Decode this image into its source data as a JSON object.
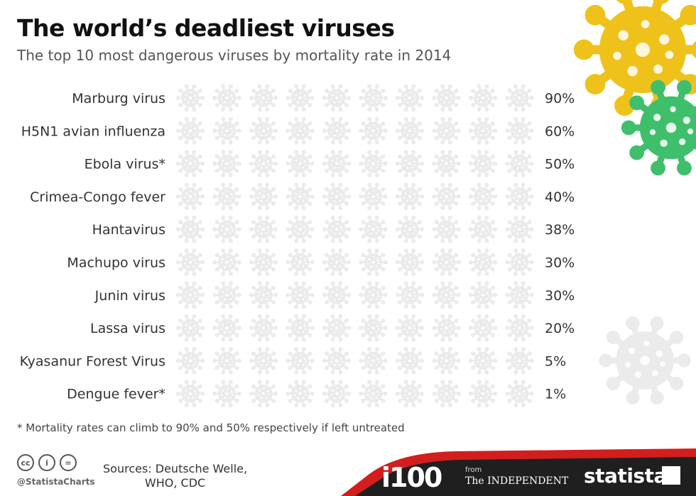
{
  "title": "The world’s deadliest viruses",
  "subtitle": "The top 10 most dangerous viruses by mortality rate in 2014",
  "footnote": "* Mortality rates can climb to 90% and 50% respectively if left untreated",
  "footer": {
    "handle": "@StatistaCharts",
    "sources_line1": "Sources: Deutsche Welle,",
    "sources_line2": "WHO, CDC",
    "i100": "i100",
    "from": "from",
    "independent": "The INDEPENDENT",
    "statista": "statista"
  },
  "colors": {
    "yellow": "#eec21a",
    "green": "#3fbf6b",
    "empty": "#ebebeb",
    "footer_dark": "#1f1f1f",
    "footer_red": "#d21e1e"
  },
  "chart_data": {
    "type": "pictogram",
    "unit_icon": "virus-icon",
    "icons_per_row": 10,
    "percent_per_icon": 10,
    "categories": [
      "Marburg virus",
      "H5N1 avian influenza",
      "Ebola virus*",
      "Crimea-Congo fever",
      "Hantavirus",
      "Machupo virus",
      "Junin virus",
      "Lassa virus",
      "Kyasanur Forest Virus",
      "Dengue fever*"
    ],
    "values": [
      90,
      60,
      50,
      40,
      38,
      30,
      30,
      20,
      5,
      1
    ],
    "value_labels": [
      "90%",
      "60%",
      "50%",
      "40%",
      "38%",
      "30%",
      "30%",
      "20%",
      "5%",
      "1%"
    ],
    "row_colors": [
      "#eec21a",
      "#e3c322",
      "#cfc42a",
      "#b8c432",
      "#a2c43a",
      "#8cc342",
      "#7ac44a",
      "#5fbe55",
      "#47bb60",
      "#3fbb66"
    ]
  }
}
